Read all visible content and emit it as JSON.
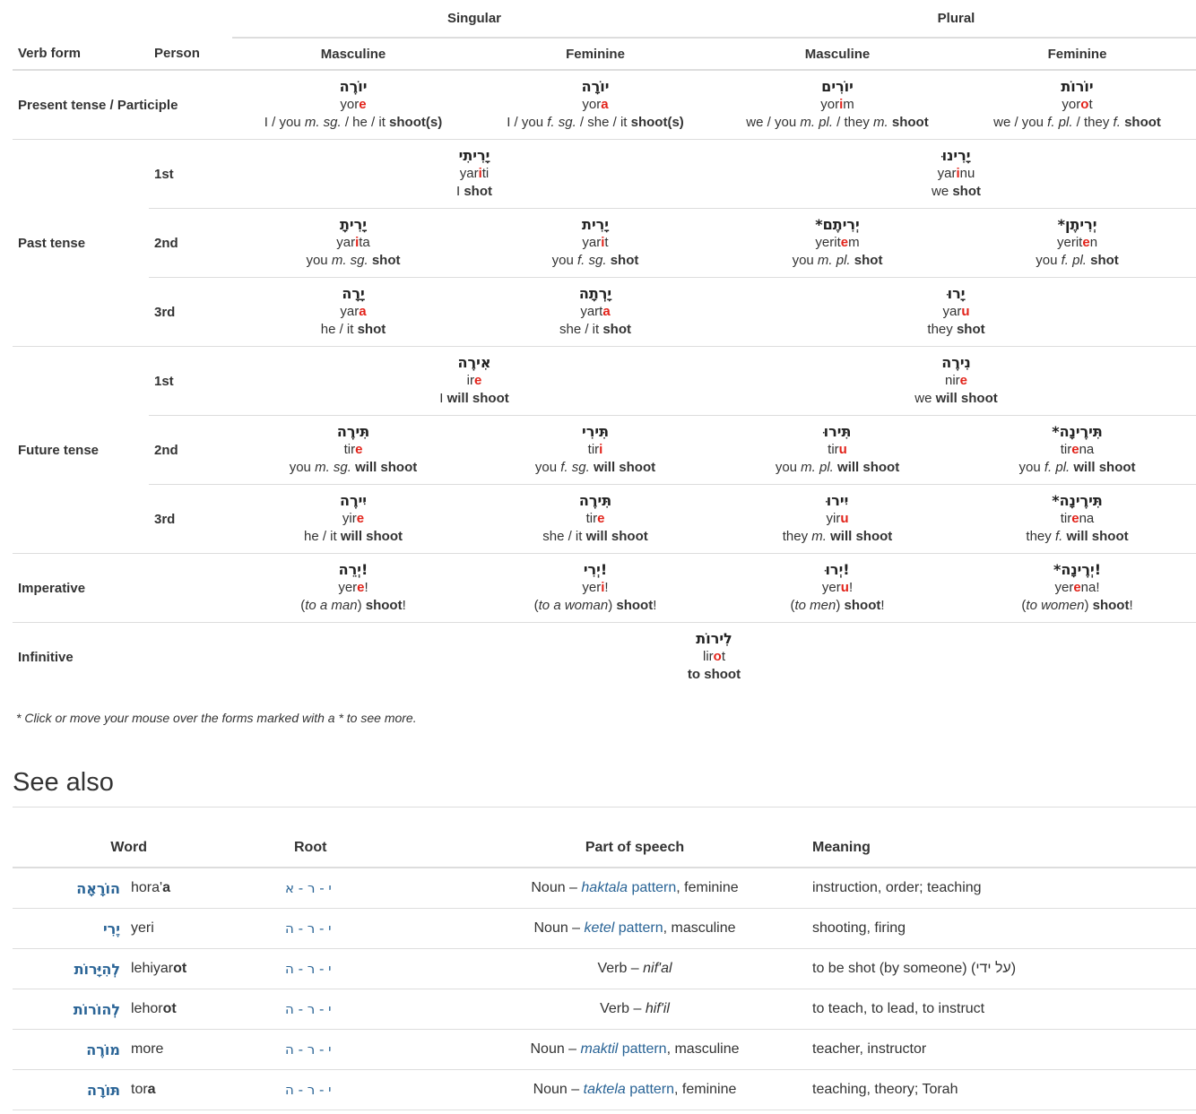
{
  "conjugation": {
    "group_headers": {
      "singular": "Singular",
      "plural": "Plural"
    },
    "col_headers": {
      "verb_form": "Verb form",
      "person": "Person",
      "sg_masc": "Masculine",
      "sg_fem": "Feminine",
      "pl_masc": "Masculine",
      "pl_fem": "Feminine"
    },
    "row_labels": {
      "present": "Present tense / Participle",
      "past": "Past tense",
      "future": "Future tense",
      "imperative": "Imperative",
      "infinitive": "Infinitive"
    },
    "persons": {
      "first": "1st",
      "second": "2nd",
      "third": "3rd"
    },
    "present": [
      {
        "heb": "יוֹרֶה",
        "tr_a": "yor",
        "tr_hl": "e",
        "tr_b": "",
        "gloss_html": "I / you <i>m. sg.</i> / he / it <b>shoot(s)</b>"
      },
      {
        "heb": "יוֹרָה",
        "tr_a": "yor",
        "tr_hl": "a",
        "tr_b": "",
        "gloss_html": "I / you <i>f. sg.</i> / she / it <b>shoot(s)</b>"
      },
      {
        "heb": "יוֹרִים",
        "tr_a": "yor",
        "tr_hl": "i",
        "tr_b": "m",
        "gloss_html": "we / you <i>m. pl.</i> / they <i>m.</i> <b>shoot</b>"
      },
      {
        "heb": "יוֹרוֹת",
        "tr_a": "yor",
        "tr_hl": "o",
        "tr_b": "t",
        "gloss_html": "we / you <i>f. pl.</i> / they <i>f.</i> <b>shoot</b>"
      }
    ],
    "past_1st": [
      {
        "heb": "יָרִיתִי",
        "tr_a": "yar",
        "tr_hl": "i",
        "tr_b": "ti",
        "gloss_html": "I <b>shot</b>"
      },
      {
        "heb": "יָרִינוּ",
        "tr_a": "yar",
        "tr_hl": "i",
        "tr_b": "nu",
        "gloss_html": "we <b>shot</b>"
      }
    ],
    "past_2nd": [
      {
        "heb": "יָרִיתָ",
        "tr_a": "yar",
        "tr_hl": "i",
        "tr_b": "ta",
        "gloss_html": "you <i>m. sg.</i> <b>shot</b>"
      },
      {
        "heb": "יָרִית",
        "tr_a": "yar",
        "tr_hl": "i",
        "tr_b": "t",
        "gloss_html": "you <i>f. sg.</i> <b>shot</b>"
      },
      {
        "heb": "יְרִיתֶם*",
        "tr_a": "yerit",
        "tr_hl": "e",
        "tr_b": "m",
        "gloss_html": "you <i>m. pl.</i> <b>shot</b>"
      },
      {
        "heb": "יְרִיתֶן*",
        "tr_a": "yerit",
        "tr_hl": "e",
        "tr_b": "n",
        "gloss_html": "you <i>f. pl.</i> <b>shot</b>"
      }
    ],
    "past_3rd": [
      {
        "heb": "יָרָה",
        "tr_a": "yar",
        "tr_hl": "a",
        "tr_b": "",
        "gloss_html": "he / it <b>shot</b>"
      },
      {
        "heb": "יָרְתָה",
        "tr_a": "yart",
        "tr_hl": "a",
        "tr_b": "",
        "gloss_html": "she / it <b>shot</b>"
      },
      {
        "heb": "יָרוּ",
        "tr_a": "yar",
        "tr_hl": "u",
        "tr_b": "",
        "gloss_html": "they <b>shot</b>"
      }
    ],
    "future_1st": [
      {
        "heb": "אִירֶה",
        "tr_a": "ir",
        "tr_hl": "e",
        "tr_b": "",
        "gloss_html": "I <b>will shoot</b>"
      },
      {
        "heb": "נִירֶה",
        "tr_a": "nir",
        "tr_hl": "e",
        "tr_b": "",
        "gloss_html": "we <b>will shoot</b>"
      }
    ],
    "future_2nd": [
      {
        "heb": "תִּירֶה",
        "tr_a": "tir",
        "tr_hl": "e",
        "tr_b": "",
        "gloss_html": "you <i>m. sg.</i> <b>will shoot</b>"
      },
      {
        "heb": "תִּירִי",
        "tr_a": "tir",
        "tr_hl": "i",
        "tr_b": "",
        "gloss_html": "you <i>f. sg.</i> <b>will shoot</b>"
      },
      {
        "heb": "תִּירוּ",
        "tr_a": "tir",
        "tr_hl": "u",
        "tr_b": "",
        "gloss_html": "you <i>m. pl.</i> <b>will shoot</b>"
      },
      {
        "heb": "תִּירֶינָה*",
        "tr_a": "tir",
        "tr_hl": "e",
        "tr_b": "na",
        "gloss_html": "you <i>f. pl.</i> <b>will shoot</b>"
      }
    ],
    "future_3rd": [
      {
        "heb": "יִירֶה",
        "tr_a": "yir",
        "tr_hl": "e",
        "tr_b": "",
        "gloss_html": "he / it <b>will shoot</b>"
      },
      {
        "heb": "תִּירֶה",
        "tr_a": "tir",
        "tr_hl": "e",
        "tr_b": "",
        "gloss_html": "she / it <b>will shoot</b>"
      },
      {
        "heb": "יִירוּ",
        "tr_a": "yir",
        "tr_hl": "u",
        "tr_b": "",
        "gloss_html": "they <i>m.</i> <b>will shoot</b>"
      },
      {
        "heb": "תִּירֶינָה*",
        "tr_a": "tir",
        "tr_hl": "e",
        "tr_b": "na",
        "gloss_html": "they <i>f.</i> <b>will shoot</b>"
      }
    ],
    "imperative": [
      {
        "heb": "!יְרֵה",
        "tr_a": "yer",
        "tr_hl": "e",
        "tr_b": "!",
        "gloss_html": "(<i>to a man</i>) <b>shoot</b>!"
      },
      {
        "heb": "!יְרִי",
        "tr_a": "yer",
        "tr_hl": "i",
        "tr_b": "!",
        "gloss_html": "(<i>to a woman</i>) <b>shoot</b>!"
      },
      {
        "heb": "!יְרוּ",
        "tr_a": "yer",
        "tr_hl": "u",
        "tr_b": "!",
        "gloss_html": "(<i>to men</i>) <b>shoot</b>!"
      },
      {
        "heb": "!יְרֶינָה*",
        "tr_a": "yer",
        "tr_hl": "e",
        "tr_b": "na!",
        "gloss_html": "(<i>to women</i>) <b>shoot</b>!"
      }
    ],
    "infinitive": {
      "heb": "לִירוֹת",
      "tr_a": "lir",
      "tr_hl": "o",
      "tr_b": "t",
      "gloss_html": "<b>to shoot</b>"
    }
  },
  "note": "* Click or move your mouse over the forms marked with a * to see more.",
  "see_also": {
    "title": "See also",
    "headers": {
      "word": "Word",
      "root": "Root",
      "pos": "Part of speech",
      "meaning": "Meaning"
    },
    "rows": [
      {
        "heb": "הוֹרָאָה",
        "tr_a": "hora'",
        "tr_b": "a",
        "root": "י - ר - א",
        "pos_a": "Noun – ",
        "pos_link_i": "haktala",
        "pos_link": " pattern",
        "pos_b": ", feminine",
        "meaning": "instruction, order; teaching"
      },
      {
        "heb": "יֶרִי",
        "tr_a": "yeri",
        "tr_b": "",
        "root": "י - ר - ה",
        "pos_a": "Noun – ",
        "pos_link_i": "ketel",
        "pos_link": " pattern",
        "pos_b": ", masculine",
        "meaning": "shooting, firing"
      },
      {
        "heb": "לְהִיָּרוֹת",
        "tr_a": "lehiyar",
        "tr_b": "ot",
        "root": "י - ר - ה",
        "pos_a": "Verb – ",
        "pos_link_i": "",
        "pos_link": "",
        "pos_b": "",
        "pos_i": "nif'al",
        "meaning": "to be shot (by someone) (על ידי)"
      },
      {
        "heb": "לְהוֹרוֹת",
        "tr_a": "lehor",
        "tr_b": "ot",
        "root": "י - ר - ה",
        "pos_a": "Verb – ",
        "pos_link_i": "",
        "pos_link": "",
        "pos_b": "",
        "pos_i": "hif'il",
        "meaning": "to teach, to lead, to instruct"
      },
      {
        "heb": "מוֹרֶה",
        "tr_a": "more",
        "tr_b": "",
        "root": "י - ר - ה",
        "pos_a": "Noun – ",
        "pos_link_i": "maktil",
        "pos_link": " pattern",
        "pos_b": ", masculine",
        "meaning": "teacher, instructor"
      },
      {
        "heb": "תּוֹרָה",
        "tr_a": "tor",
        "tr_b": "a",
        "root": "י - ר - ה",
        "pos_a": "Noun – ",
        "pos_link_i": "taktela",
        "pos_link": " pattern",
        "pos_b": ", feminine",
        "meaning": "teaching, theory; Torah"
      }
    ]
  },
  "colors": {
    "highlight": "#e2231a",
    "link": "#2a6496",
    "rule": "#dddddd",
    "text": "#333333"
  }
}
